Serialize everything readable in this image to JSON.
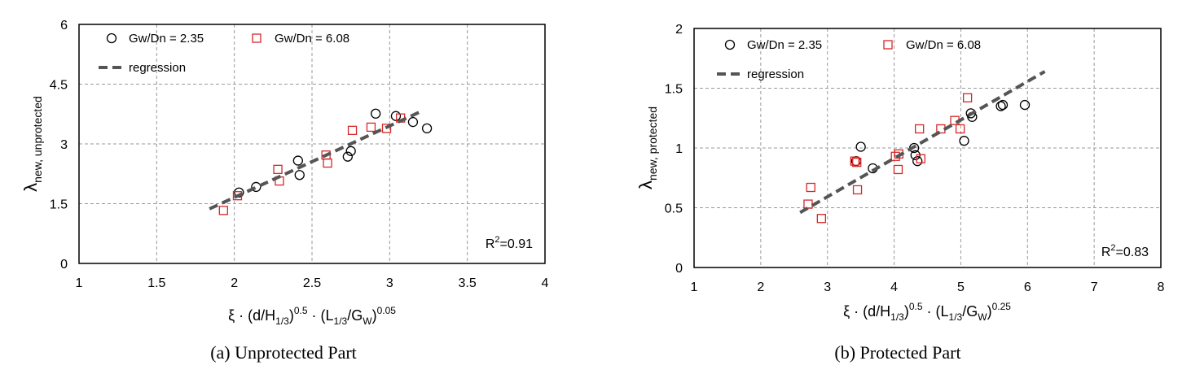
{
  "chart_data": [
    {
      "type": "scatter",
      "caption": "(a) Unprotected Part",
      "xlabel": {
        "base": "ξ · (d/H",
        "sub1": "1/3",
        "mid1": ")",
        "sup1": "0.5",
        "mid2": " · (L",
        "sub2": "1/3",
        "mid3": "/G",
        "sub3": "W",
        "mid4": ")",
        "sup2": "0.05"
      },
      "ylabel": {
        "base": "λ",
        "sub": "new, unprotected"
      },
      "xlim": [
        1,
        4
      ],
      "ylim": [
        0,
        6
      ],
      "xticks": [
        "1",
        "1.5",
        "2",
        "2.5",
        "3",
        "3.5",
        "4"
      ],
      "yticks": [
        "0",
        "1.5",
        "3",
        "4.5",
        "6"
      ],
      "grid": true,
      "legend_position": "top-left",
      "annotation": {
        "base": "R",
        "sup": "2",
        "rest": "=0.91"
      },
      "series": [
        {
          "name": "Gw/Dn = 2.35",
          "marker": "circle",
          "color": "#000000",
          "x": [
            2.03,
            2.14,
            2.41,
            2.42,
            2.73,
            2.75,
            2.91,
            3.04,
            3.15,
            3.24
          ],
          "y": [
            1.78,
            1.92,
            2.58,
            2.22,
            2.68,
            2.82,
            3.76,
            3.7,
            3.55,
            3.39
          ]
        },
        {
          "name": "Gw/Dn = 6.08",
          "marker": "square",
          "color": "#d62728",
          "x": [
            1.93,
            2.02,
            2.28,
            2.29,
            2.59,
            2.6,
            2.76,
            2.88,
            2.98,
            3.07
          ],
          "y": [
            1.33,
            1.7,
            2.36,
            2.07,
            2.72,
            2.52,
            3.34,
            3.42,
            3.39,
            3.65
          ]
        },
        {
          "name": "regression",
          "marker": "dashed-line",
          "color": "#555555",
          "x": [
            1.84,
            3.21
          ],
          "y": [
            1.37,
            3.83
          ]
        }
      ]
    },
    {
      "type": "scatter",
      "caption": "(b) Protected Part",
      "xlabel": {
        "base": "ξ · (d/H",
        "sub1": "1/3",
        "mid1": ")",
        "sup1": "0.5",
        "mid2": " · (L",
        "sub2": "1/3",
        "mid3": "/G",
        "sub3": "W",
        "mid4": ")",
        "sup2": "0.25"
      },
      "ylabel": {
        "base": "λ",
        "sub": "new, protected"
      },
      "xlim": [
        1,
        8
      ],
      "ylim": [
        0,
        2
      ],
      "xticks": [
        "1",
        "2",
        "3",
        "4",
        "5",
        "6",
        "7",
        "8"
      ],
      "yticks": [
        "0",
        "0.5",
        "1",
        "1.5",
        "2"
      ],
      "grid": true,
      "legend_position": "top-left",
      "annotation": {
        "base": "R",
        "sup": "2",
        "rest": "=0.83"
      },
      "series": [
        {
          "name": "Gw/Dn = 2.35",
          "marker": "circle",
          "color": "#000000",
          "x": [
            3.43,
            3.5,
            3.68,
            4.3,
            4.32,
            4.35,
            5.05,
            5.15,
            5.17,
            5.6,
            5.63,
            5.96
          ],
          "y": [
            0.89,
            1.01,
            0.83,
            1.0,
            0.94,
            0.89,
            1.06,
            1.29,
            1.26,
            1.35,
            1.36,
            1.36
          ]
        },
        {
          "name": "Gw/Dn = 6.08",
          "marker": "square",
          "color": "#d62728",
          "x": [
            2.71,
            2.75,
            2.91,
            3.41,
            3.44,
            3.45,
            4.02,
            4.06,
            4.07,
            4.38,
            4.4,
            4.7,
            4.91,
            4.99,
            5.1
          ],
          "y": [
            0.53,
            0.67,
            0.41,
            0.89,
            0.88,
            0.65,
            0.93,
            0.82,
            0.95,
            1.16,
            0.91,
            1.16,
            1.23,
            1.16,
            1.42
          ]
        },
        {
          "name": "regression",
          "marker": "dashed-line",
          "color": "#555555",
          "x": [
            2.59,
            6.26
          ],
          "y": [
            0.46,
            1.64
          ]
        }
      ]
    }
  ]
}
